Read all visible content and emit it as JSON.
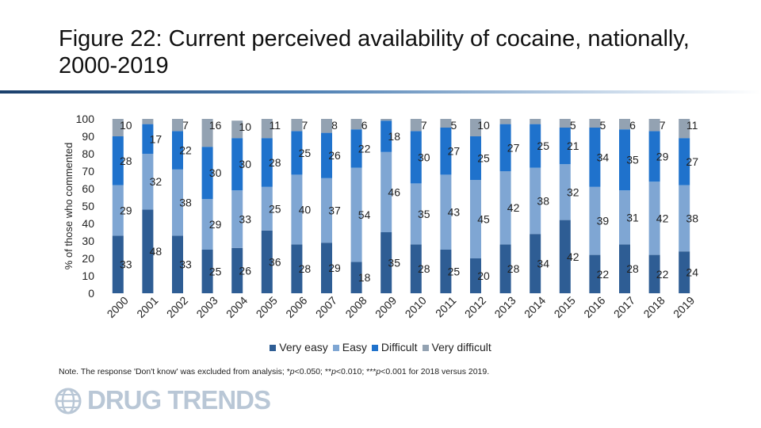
{
  "title": "Figure 22: Current perceived availability of cocaine, nationally, 2000-2019",
  "note": {
    "prefix": "Note. The response 'Don't know' was excluded from analysis; *",
    "p1": "p",
    "t1": "<0.050; **",
    "p2": "p",
    "t2": "<0.010; ***",
    "p3": "p",
    "t3": "<0.001 for 2018 versus 2019."
  },
  "logo": {
    "text": "DRUG TRENDS",
    "icon": "globe-icon"
  },
  "colors": {
    "very_easy": "#2e5d94",
    "easy": "#7fa6d3",
    "difficult": "#1f72cc",
    "very_difficult": "#93a2b2"
  },
  "chart_data": {
    "type": "bar",
    "stacked": true,
    "ylabel": "% of those who commented",
    "ylim": [
      0,
      100
    ],
    "yticks": [
      0,
      10,
      20,
      30,
      40,
      50,
      60,
      70,
      80,
      90,
      100
    ],
    "legend_position": "bottom",
    "categories": [
      "2000",
      "2001",
      "2002",
      "2003",
      "2004",
      "2005",
      "2006",
      "2007",
      "2008",
      "2009",
      "2010",
      "2011",
      "2012",
      "2013",
      "2014",
      "2015",
      "2016",
      "2017",
      "2018",
      "2019"
    ],
    "series": [
      {
        "name": "Very easy",
        "values": [
          33,
          48,
          33,
          25,
          26,
          36,
          28,
          29,
          18,
          35,
          28,
          25,
          20,
          28,
          34,
          42,
          22,
          28,
          22,
          24
        ]
      },
      {
        "name": "Easy",
        "values": [
          29,
          32,
          38,
          29,
          33,
          25,
          40,
          37,
          54,
          46,
          35,
          43,
          45,
          42,
          38,
          32,
          39,
          31,
          42,
          38
        ]
      },
      {
        "name": "Difficult",
        "values": [
          28,
          17,
          22,
          30,
          30,
          28,
          25,
          26,
          22,
          18,
          30,
          27,
          25,
          27,
          25,
          21,
          34,
          35,
          29,
          27
        ]
      },
      {
        "name": "Very difficult",
        "values": [
          10,
          3,
          7,
          16,
          10,
          11,
          7,
          8,
          6,
          1,
          7,
          5,
          10,
          3,
          3,
          5,
          5,
          6,
          7,
          11
        ]
      }
    ],
    "labels_shown": [
      [
        true,
        true,
        true,
        true,
        true,
        true,
        true,
        true,
        true,
        true,
        true,
        true,
        true,
        true,
        true,
        true,
        true,
        true,
        true,
        true
      ],
      [
        true,
        true,
        true,
        true,
        true,
        true,
        true,
        true,
        true,
        true,
        true,
        true,
        true,
        true,
        true,
        true,
        true,
        true,
        true,
        true
      ],
      [
        true,
        true,
        true,
        true,
        true,
        true,
        true,
        true,
        true,
        true,
        true,
        true,
        true,
        true,
        true,
        true,
        true,
        true,
        true,
        true
      ],
      [
        true,
        false,
        true,
        true,
        true,
        true,
        true,
        true,
        true,
        false,
        true,
        true,
        true,
        false,
        false,
        true,
        true,
        true,
        true,
        true
      ]
    ]
  }
}
